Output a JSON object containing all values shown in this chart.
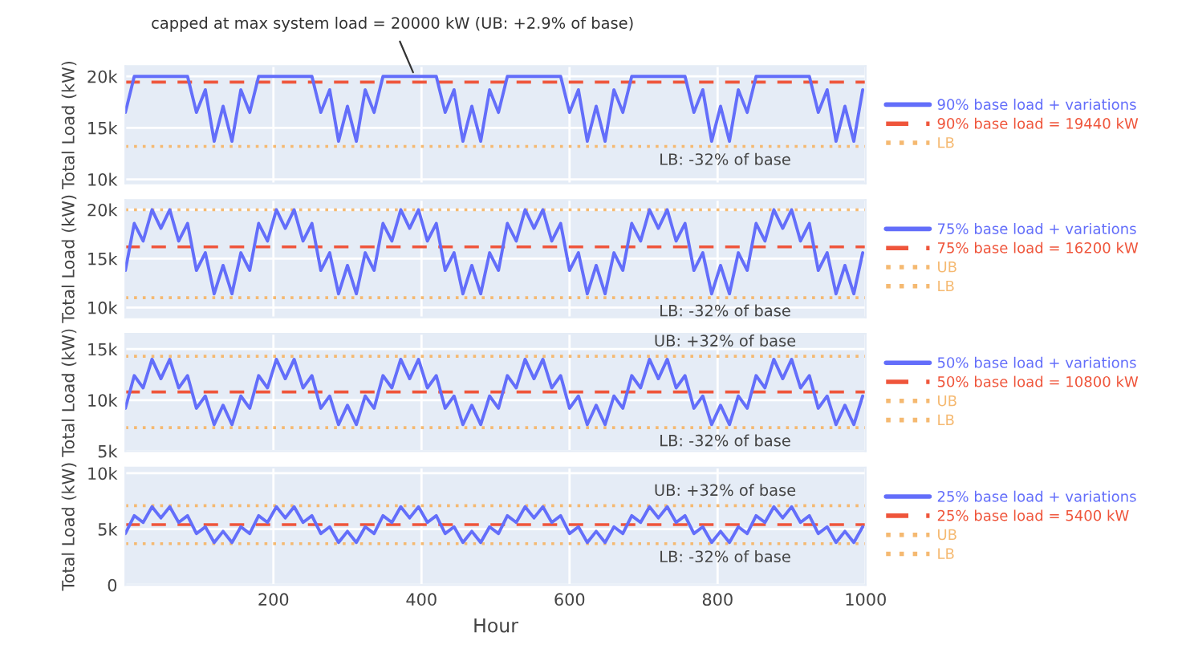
{
  "chart_data": [
    {
      "type": "line",
      "ylabel": "Total Load (kW)",
      "xlim": [
        0,
        1000
      ],
      "xticks": [
        200,
        400,
        600,
        800,
        1000
      ],
      "ylim": [
        9600,
        21000
      ],
      "yticks": [
        {
          "value": 10000,
          "label": "10k"
        },
        {
          "value": 15000,
          "label": "15k"
        },
        {
          "value": 20000,
          "label": "20k"
        }
      ],
      "tick_labels": "y",
      "grid": true,
      "legend": "right",
      "line_style": "solid",
      "series": [
        {
          "name": "90% base load + variations",
          "color": "#636efa",
          "x": [
            0,
            12,
            24,
            36,
            48,
            60,
            72,
            84,
            96,
            108,
            120,
            132,
            144,
            156,
            168,
            180,
            192,
            204,
            216,
            228,
            240,
            252,
            264,
            276,
            288,
            300,
            312,
            324,
            336,
            348,
            360,
            372,
            384,
            396,
            408,
            420,
            432,
            444,
            456,
            468,
            480,
            492,
            504,
            516,
            528,
            540,
            552,
            564,
            576,
            588,
            600,
            612,
            624,
            636,
            648,
            660,
            672,
            684,
            696,
            708,
            720,
            732,
            744,
            756,
            768,
            780,
            792,
            804,
            816,
            828,
            840,
            852,
            864,
            876,
            888,
            900,
            912,
            924,
            936,
            948,
            960,
            972,
            984,
            996
          ],
          "values": [
            16500,
            20000,
            20000,
            20000,
            20000,
            20000,
            20000,
            20000,
            16500,
            18700,
            13700,
            17100,
            13700,
            18700,
            16500,
            20000,
            20000,
            20000,
            20000,
            20000,
            20000,
            20000,
            16500,
            18700,
            13700,
            17100,
            13700,
            18700,
            16500,
            20000,
            20000,
            20000,
            20000,
            20000,
            20000,
            20000,
            16500,
            18700,
            13700,
            17100,
            13700,
            18700,
            16500,
            20000,
            20000,
            20000,
            20000,
            20000,
            20000,
            20000,
            16500,
            18700,
            13700,
            17100,
            13700,
            18700,
            16500,
            20000,
            20000,
            20000,
            20000,
            20000,
            20000,
            20000,
            16500,
            18700,
            13700,
            17100,
            13700,
            18700,
            16500,
            20000,
            20000,
            20000,
            20000,
            20000,
            20000,
            20000,
            16500,
            18700,
            13700,
            17100,
            13700,
            18700
          ]
        }
      ],
      "ref_lines": [
        {
          "axis": "y",
          "value": 19440,
          "label": "90% base load = 19440 kW",
          "color": "#ef553b",
          "line_style": "dashed"
        },
        {
          "axis": "y",
          "value": 13200,
          "label": "LB",
          "color": "#f5b971",
          "line_style": "dotted"
        }
      ],
      "annotations": [
        {
          "text": "capped at max system load = 20000 kW (UB: +2.9% of base)",
          "x": 391,
          "y": 20000
        },
        {
          "text": "LB: -32% of base",
          "y": 13200
        }
      ]
    },
    {
      "type": "line",
      "ylabel": "Total Load (kW)",
      "xlim": [
        0,
        1000
      ],
      "xticks": [
        200,
        400,
        600,
        800,
        1000
      ],
      "ylim": [
        9000,
        21000
      ],
      "yticks": [
        {
          "value": 10000,
          "label": "10k"
        },
        {
          "value": 15000,
          "label": "15k"
        },
        {
          "value": 20000,
          "label": "20k"
        }
      ],
      "tick_labels": "y",
      "grid": true,
      "legend": "right",
      "line_style": "solid",
      "series": [
        {
          "name": "75% base load + variations",
          "color": "#636efa",
          "x": [
            0,
            12,
            24,
            36,
            48,
            60,
            72,
            84,
            96,
            108,
            120,
            132,
            144,
            156,
            168,
            180,
            192,
            204,
            216,
            228,
            240,
            252,
            264,
            276,
            288,
            300,
            312,
            324,
            336,
            348,
            360,
            372,
            384,
            396,
            408,
            420,
            432,
            444,
            456,
            468,
            480,
            492,
            504,
            516,
            528,
            540,
            552,
            564,
            576,
            588,
            600,
            612,
            624,
            636,
            648,
            660,
            672,
            684,
            696,
            708,
            720,
            732,
            744,
            756,
            768,
            780,
            792,
            804,
            816,
            828,
            840,
            852,
            864,
            876,
            888,
            900,
            912,
            924,
            936,
            948,
            960,
            972,
            984,
            996
          ],
          "values": [
            13800,
            18600,
            16800,
            20000,
            18100,
            20000,
            16800,
            18600,
            13800,
            15600,
            11400,
            14300,
            11400,
            15600,
            13800,
            18600,
            16800,
            20000,
            18100,
            20000,
            16800,
            18600,
            13800,
            15600,
            11400,
            14300,
            11400,
            15600,
            13800,
            18600,
            16800,
            20000,
            18100,
            20000,
            16800,
            18600,
            13800,
            15600,
            11400,
            14300,
            11400,
            15600,
            13800,
            18600,
            16800,
            20000,
            18100,
            20000,
            16800,
            18600,
            13800,
            15600,
            11400,
            14300,
            11400,
            15600,
            13800,
            18600,
            16800,
            20000,
            18100,
            20000,
            16800,
            18600,
            13800,
            15600,
            11400,
            14300,
            11400,
            15600,
            13800,
            18600,
            16800,
            20000,
            18100,
            20000,
            16800,
            18600,
            13800,
            15600,
            11400,
            14300,
            11400,
            15600
          ]
        }
      ],
      "ref_lines": [
        {
          "axis": "y",
          "value": 16200,
          "label": "75% base load = 16200 kW",
          "color": "#ef553b",
          "line_style": "dashed"
        },
        {
          "axis": "y",
          "value": 20000,
          "label": "UB",
          "color": "#f5b971",
          "line_style": "dotted"
        },
        {
          "axis": "y",
          "value": 11000,
          "label": "LB",
          "color": "#f5b971",
          "line_style": "dotted"
        }
      ],
      "annotations": [
        {
          "text": "LB: -32% of base",
          "y": 11000
        }
      ]
    },
    {
      "type": "line",
      "ylabel": "Total Load (kW)",
      "xlim": [
        0,
        1000
      ],
      "xticks": [
        200,
        400,
        600,
        800,
        1000
      ],
      "ylim": [
        5000,
        16500
      ],
      "yticks": [
        {
          "value": 5000,
          "label": "5k"
        },
        {
          "value": 10000,
          "label": "10k"
        },
        {
          "value": 15000,
          "label": "15k"
        }
      ],
      "tick_labels": "y",
      "grid": true,
      "legend": "right",
      "line_style": "solid",
      "series": [
        {
          "name": "50% base load + variations",
          "color": "#636efa",
          "x": [
            0,
            12,
            24,
            36,
            48,
            60,
            72,
            84,
            96,
            108,
            120,
            132,
            144,
            156,
            168,
            180,
            192,
            204,
            216,
            228,
            240,
            252,
            264,
            276,
            288,
            300,
            312,
            324,
            336,
            348,
            360,
            372,
            384,
            396,
            408,
            420,
            432,
            444,
            456,
            468,
            480,
            492,
            504,
            516,
            528,
            540,
            552,
            564,
            576,
            588,
            600,
            612,
            624,
            636,
            648,
            660,
            672,
            684,
            696,
            708,
            720,
            732,
            744,
            756,
            768,
            780,
            792,
            804,
            816,
            828,
            840,
            852,
            864,
            876,
            888,
            900,
            912,
            924,
            936,
            948,
            960,
            972,
            984,
            996
          ],
          "values": [
            9200,
            12400,
            11200,
            14000,
            12100,
            14000,
            11200,
            12400,
            9200,
            10400,
            7600,
            9500,
            7600,
            10400,
            9200,
            12400,
            11200,
            14000,
            12100,
            14000,
            11200,
            12400,
            9200,
            10400,
            7600,
            9500,
            7600,
            10400,
            9200,
            12400,
            11200,
            14000,
            12100,
            14000,
            11200,
            12400,
            9200,
            10400,
            7600,
            9500,
            7600,
            10400,
            9200,
            12400,
            11200,
            14000,
            12100,
            14000,
            11200,
            12400,
            9200,
            10400,
            7600,
            9500,
            7600,
            10400,
            9200,
            12400,
            11200,
            14000,
            12100,
            14000,
            11200,
            12400,
            9200,
            10400,
            7600,
            9500,
            7600,
            10400,
            9200,
            12400,
            11200,
            14000,
            12100,
            14000,
            11200,
            12400,
            9200,
            10400,
            7600,
            9500,
            7600,
            10400
          ]
        }
      ],
      "ref_lines": [
        {
          "axis": "y",
          "value": 10800,
          "label": "50% base load = 10800 kW",
          "color": "#ef553b",
          "line_style": "dashed"
        },
        {
          "axis": "y",
          "value": 14300,
          "label": "UB",
          "color": "#f5b971",
          "line_style": "dotted"
        },
        {
          "axis": "y",
          "value": 7300,
          "label": "LB",
          "color": "#f5b971",
          "line_style": "dotted"
        }
      ],
      "annotations": [
        {
          "text": "UB: +32% of base",
          "y": 14300
        },
        {
          "text": "LB: -32% of base",
          "y": 7300
        }
      ]
    },
    {
      "type": "line",
      "ylabel": "Total Load (kW)",
      "xlabel": "Hour",
      "xlim": [
        0,
        1000
      ],
      "xticks": [
        200,
        400,
        600,
        800,
        1000
      ],
      "ylim": [
        0,
        10500
      ],
      "yticks": [
        0,
        {
          "value": 5000,
          "label": "5k"
        },
        {
          "value": 10000,
          "label": "10k"
        }
      ],
      "grid": true,
      "legend": "right",
      "line_style": "solid",
      "series": [
        {
          "name": "25% base load + variations",
          "color": "#636efa",
          "x": [
            0,
            12,
            24,
            36,
            48,
            60,
            72,
            84,
            96,
            108,
            120,
            132,
            144,
            156,
            168,
            180,
            192,
            204,
            216,
            228,
            240,
            252,
            264,
            276,
            288,
            300,
            312,
            324,
            336,
            348,
            360,
            372,
            384,
            396,
            408,
            420,
            432,
            444,
            456,
            468,
            480,
            492,
            504,
            516,
            528,
            540,
            552,
            564,
            576,
            588,
            600,
            612,
            624,
            636,
            648,
            660,
            672,
            684,
            696,
            708,
            720,
            732,
            744,
            756,
            768,
            780,
            792,
            804,
            816,
            828,
            840,
            852,
            864,
            876,
            888,
            900,
            912,
            924,
            936,
            948,
            960,
            972,
            984,
            996
          ],
          "values": [
            4600,
            6200,
            5600,
            7000,
            6000,
            7000,
            5600,
            6200,
            4600,
            5200,
            3800,
            4800,
            3800,
            5200,
            4600,
            6200,
            5600,
            7000,
            6000,
            7000,
            5600,
            6200,
            4600,
            5200,
            3800,
            4800,
            3800,
            5200,
            4600,
            6200,
            5600,
            7000,
            6000,
            7000,
            5600,
            6200,
            4600,
            5200,
            3800,
            4800,
            3800,
            5200,
            4600,
            6200,
            5600,
            7000,
            6000,
            7000,
            5600,
            6200,
            4600,
            5200,
            3800,
            4800,
            3800,
            5200,
            4600,
            6200,
            5600,
            7000,
            6000,
            7000,
            5600,
            6200,
            4600,
            5200,
            3800,
            4800,
            3800,
            5200,
            4600,
            6200,
            5600,
            7000,
            6000,
            7000,
            5600,
            6200,
            4600,
            5200,
            3800,
            4800,
            3800,
            5200
          ]
        }
      ],
      "ref_lines": [
        {
          "axis": "y",
          "value": 5400,
          "label": "25% base load = 5400 kW",
          "color": "#ef553b",
          "line_style": "dashed"
        },
        {
          "axis": "y",
          "value": 7100,
          "label": "UB",
          "color": "#f5b971",
          "line_style": "dotted"
        },
        {
          "axis": "y",
          "value": 3700,
          "label": "LB",
          "color": "#f5b971",
          "line_style": "dotted"
        }
      ],
      "annotations": [
        {
          "text": "UB: +32% of base",
          "y": 7100
        },
        {
          "text": "LB: -32% of base",
          "y": 3700
        }
      ]
    }
  ]
}
